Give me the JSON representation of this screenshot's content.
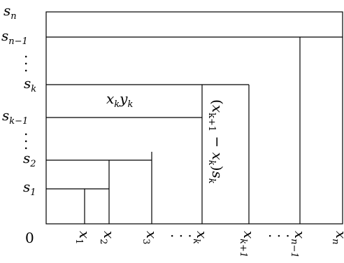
{
  "origin_label": "0",
  "y_labels": [
    {
      "base": "s",
      "sub": "n"
    },
    {
      "base": "s",
      "sub": "n−1"
    },
    {
      "base": "s",
      "sub": "k"
    },
    {
      "base": "s",
      "sub": "k−1"
    },
    {
      "base": "s",
      "sub": "2"
    },
    {
      "base": "s",
      "sub": "1"
    }
  ],
  "x_labels": [
    {
      "base": "x",
      "sub": "1"
    },
    {
      "base": "x",
      "sub": "2"
    },
    {
      "base": "x",
      "sub": "3"
    },
    {
      "base": "x",
      "sub": "k"
    },
    {
      "base": "x",
      "sub": "k+1"
    },
    {
      "base": "x",
      "sub": "n−1"
    },
    {
      "base": "x",
      "sub": "n"
    }
  ],
  "ellipsis": "· · ·",
  "area_label_main": {
    "a": "x",
    "a_sub": "k",
    "b": "y",
    "b_sub": "k"
  },
  "area_label_rotated": {
    "open": "(",
    "x1": "x",
    "x1_sub": "k+1",
    "minus": " − ",
    "x2": "x",
    "x2_sub": "k",
    "close": ")",
    "s": "s",
    "s_sub": "k"
  }
}
